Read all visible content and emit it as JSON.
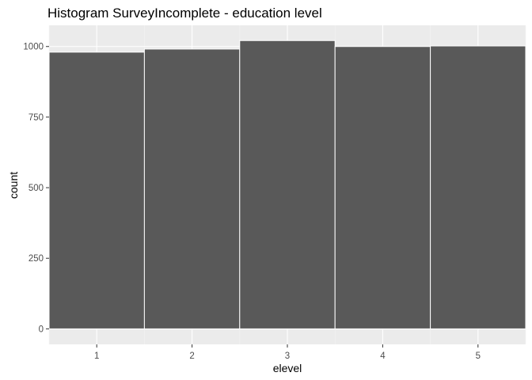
{
  "chart_data": {
    "type": "bar",
    "title": "Histogram SurveyIncomplete - education level",
    "xlabel": "elevel",
    "ylabel": "count",
    "categories": [
      "1",
      "2",
      "3",
      "4",
      "5"
    ],
    "values": [
      980,
      991,
      1021,
      1000,
      1002
    ],
    "yticks": [
      "0",
      "250",
      "500",
      "750",
      "1000"
    ],
    "ylim": [
      -55,
      1075
    ],
    "xlim": [
      0.5,
      5.5
    ],
    "grid": true,
    "legend": "none",
    "colors": {
      "bar_fill": "#595959",
      "bar_outline": "#ffffff",
      "panel_background": "#ebebeb",
      "grid_major": "#ffffff",
      "grid_minor": "#f3f3f3"
    }
  }
}
